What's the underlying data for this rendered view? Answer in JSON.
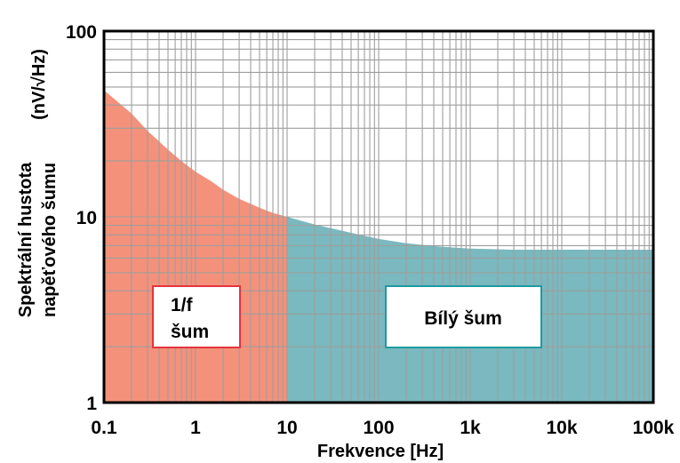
{
  "chart_data": {
    "type": "area",
    "xscale": "log",
    "yscale": "log",
    "xlim": [
      0.1,
      100000
    ],
    "ylim": [
      1,
      100
    ],
    "grid": true,
    "xlabel": "Frekvence [Hz]",
    "ylabel_line1": "Spektrální hustota",
    "ylabel_line2": "napěťového šumu",
    "ylabel_unit": "(nV/√Hz)",
    "x_ticks": [
      0.1,
      1,
      10,
      100,
      1000,
      10000,
      100000
    ],
    "x_tick_labels": [
      "0.1",
      "1",
      "10",
      "100",
      "1k",
      "10k",
      "100k"
    ],
    "y_ticks": [
      1,
      10,
      100
    ],
    "y_tick_labels": [
      "1",
      "10",
      "100"
    ],
    "corner_frequency": 10,
    "colors": {
      "flicker": "#F4917A",
      "white": "#79B9BF",
      "flicker_box_border": "#E5343F",
      "white_box_border": "#1E9AA0",
      "grid": "#9E9E9E"
    },
    "series": [
      {
        "name": "1/f šum",
        "x": [
          0.1,
          0.2,
          0.3,
          0.5,
          0.7,
          1,
          1.5,
          2,
          3,
          5,
          7,
          10
        ],
        "y": [
          48,
          36,
          29,
          23,
          20,
          17.5,
          15.5,
          14,
          12.5,
          11.2,
          10.5,
          10
        ]
      },
      {
        "name": "Bílý šum",
        "x": [
          10,
          20,
          50,
          100,
          200,
          500,
          1000,
          3000,
          10000,
          100000
        ],
        "y": [
          10,
          9.1,
          8.2,
          7.6,
          7.2,
          6.9,
          6.75,
          6.65,
          6.65,
          6.65
        ]
      }
    ],
    "annotations": [
      {
        "name": "flicker-label",
        "lines": [
          "1/f",
          "šum"
        ]
      },
      {
        "name": "white-label",
        "lines": [
          "Bílý šum"
        ]
      }
    ]
  }
}
